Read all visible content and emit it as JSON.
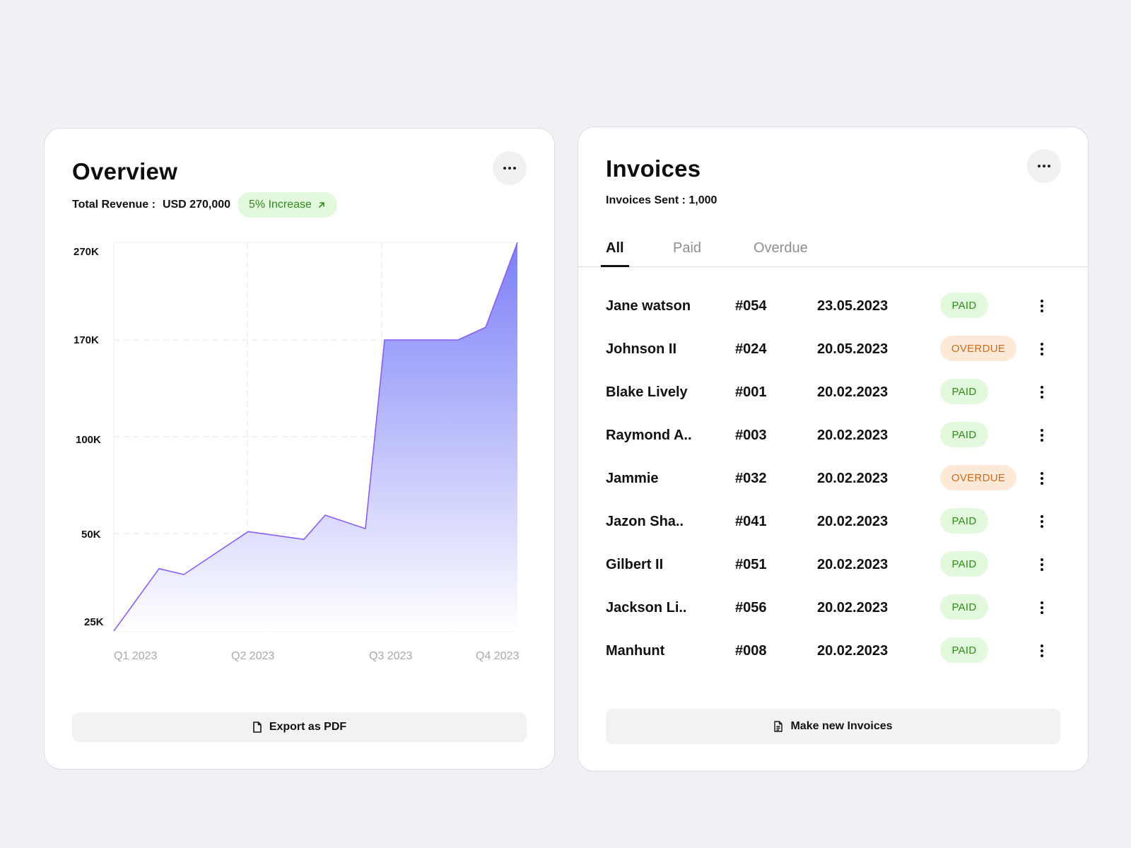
{
  "overview": {
    "title": "Overview",
    "revenue_label": "Total Revenue :",
    "revenue_value": "USD 270,000",
    "increase_badge": "5% Increase",
    "export_label": "Export as PDF"
  },
  "chart_data": {
    "type": "area",
    "y_ticks": [
      "270K",
      "170K",
      "100K",
      "50K",
      "25K"
    ],
    "x_ticks": [
      "Q1 2023",
      "Q2 2023",
      "Q3 2023",
      "Q4 2023"
    ],
    "series": [
      {
        "values": [
          25000,
          41000,
          39500,
          51000,
          48500,
          59500,
          52500,
          170000,
          170000,
          183000,
          270000
        ]
      }
    ],
    "grid": true,
    "colors": {
      "line": "#8b5cf6",
      "fill_top": "#7b7ff7",
      "fill_bottom": "#ffffff"
    }
  },
  "invoices": {
    "title": "Invoices",
    "sent_label": "Invoices Sent : 1,000",
    "tabs": [
      {
        "label": "All"
      },
      {
        "label": "Paid"
      },
      {
        "label": "Overdue"
      }
    ],
    "rows": [
      {
        "name": "Jane watson",
        "id": "#054",
        "date": "23.05.2023",
        "status": "PAID"
      },
      {
        "name": "Johnson II",
        "id": "#024",
        "date": "20.05.2023",
        "status": "OVERDUE"
      },
      {
        "name": "Blake Lively",
        "id": "#001",
        "date": "20.02.2023",
        "status": "PAID"
      },
      {
        "name": "Raymond A..",
        "id": "#003",
        "date": "20.02.2023",
        "status": "PAID"
      },
      {
        "name": "Jammie",
        "id": "#032",
        "date": "20.02.2023",
        "status": "OVERDUE"
      },
      {
        "name": "Jazon Sha..",
        "id": "#041",
        "date": "20.02.2023",
        "status": "PAID"
      },
      {
        "name": "Gilbert II",
        "id": "#051",
        "date": "20.02.2023",
        "status": "PAID"
      },
      {
        "name": "Jackson Li..",
        "id": "#056",
        "date": "20.02.2023",
        "status": "PAID"
      },
      {
        "name": "Manhunt",
        "id": "#008",
        "date": "20.02.2023",
        "status": "PAID"
      }
    ],
    "new_label": "Make new Invoices"
  },
  "icons": {
    "more": "more-horizontal-icon",
    "kebab": "more-vertical-icon",
    "arrow": "arrow-up-right-icon",
    "file": "file-icon",
    "document": "document-icon"
  }
}
